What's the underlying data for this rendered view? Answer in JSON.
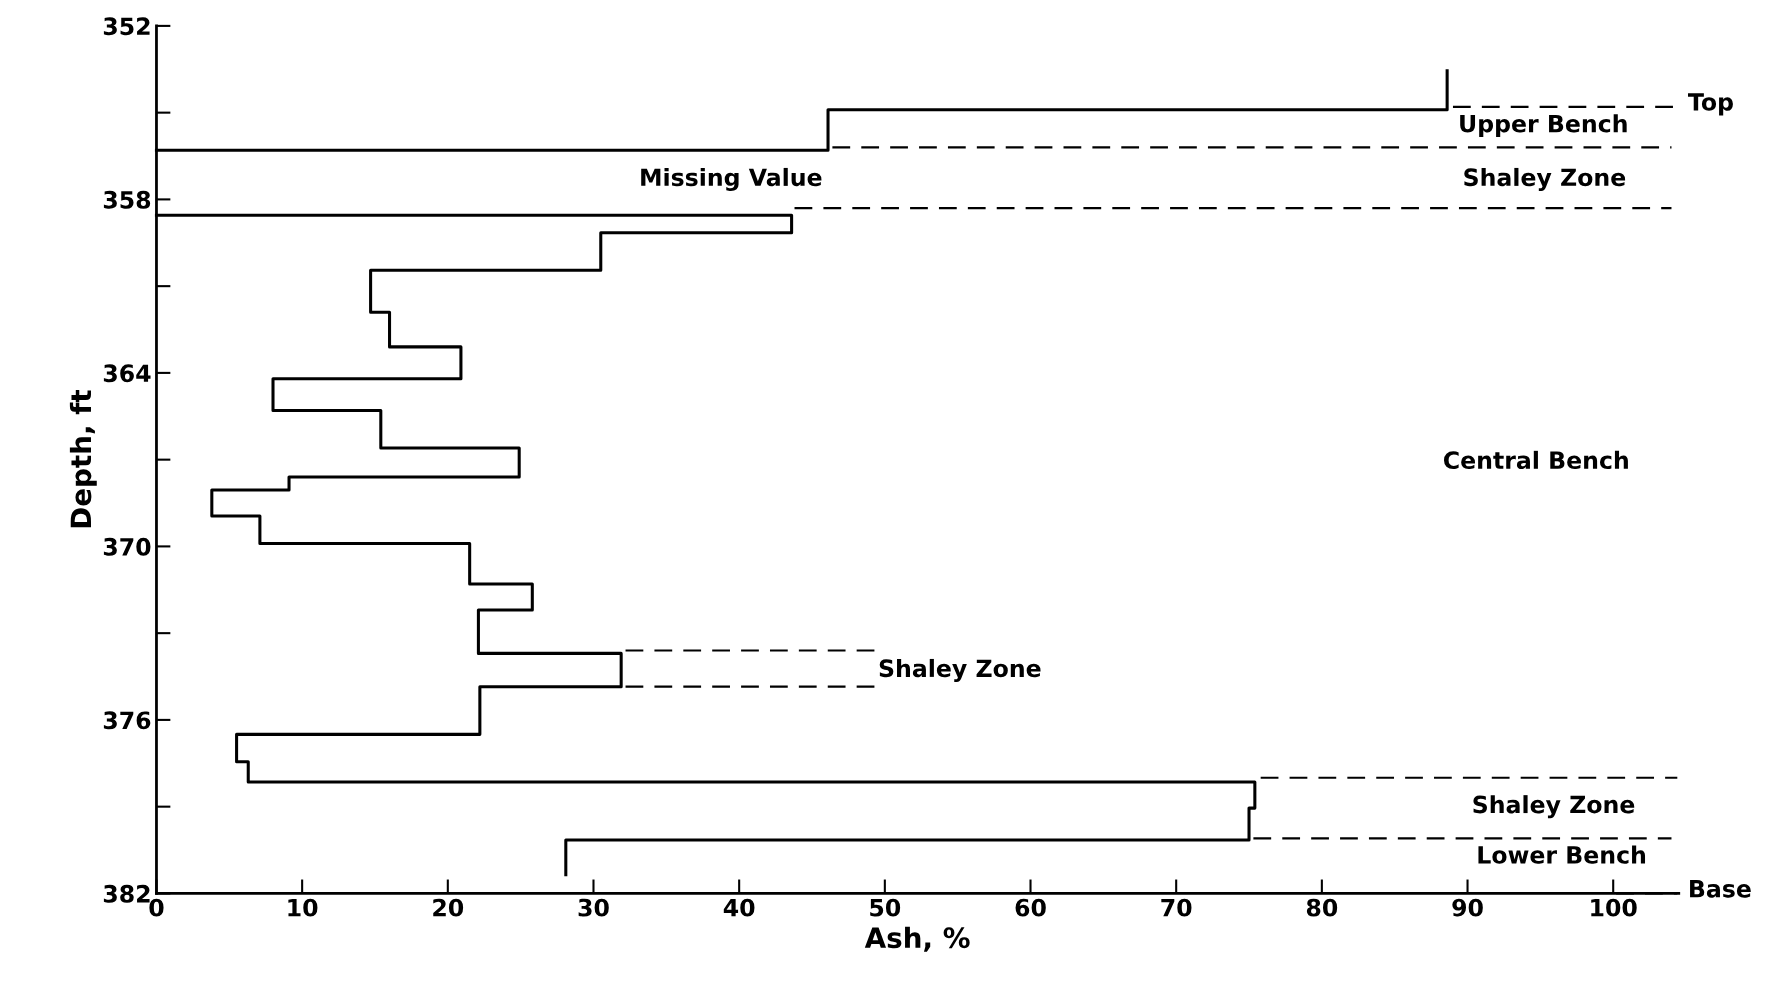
{
  "chart_data": {
    "type": "line",
    "xlabel": "Ash, %",
    "ylabel": "Depth, ft",
    "xlim": [
      0,
      104.5
    ],
    "xticks": [
      0,
      10,
      20,
      30,
      40,
      50,
      60,
      70,
      80,
      90,
      100
    ],
    "ylim": [
      382,
      352
    ],
    "yticks": [
      352,
      {
        "value": 355,
        "label": null
      },
      358,
      {
        "value": 361,
        "label": null
      },
      364,
      {
        "value": 367,
        "label": null
      },
      370,
      {
        "value": 373,
        "label": null
      },
      376,
      {
        "value": 379,
        "label": null
      },
      382
    ],
    "grid": false,
    "legend": false,
    "marker": "none",
    "series": [
      {
        "color": "#000000",
        "line_style": "solid",
        "x": [
          88.6,
          88.6,
          46.1,
          46.1,
          0
        ],
        "values": [
          353.55,
          354.9,
          354.9,
          356.3,
          356.3
        ]
      },
      {
        "color": "#000000",
        "line_style": "solid",
        "x": [
          0,
          43.6,
          43.6,
          30.5,
          30.5,
          14.7,
          14.7,
          16.0,
          16.0,
          20.9,
          20.9,
          8.0,
          8.0,
          15.4,
          15.4,
          24.9,
          24.9,
          9.1,
          9.1,
          3.8,
          3.8,
          7.1,
          7.1,
          21.5,
          21.5,
          25.8,
          25.8,
          22.1,
          22.1,
          31.9,
          31.9,
          22.2,
          22.2,
          5.5,
          5.5,
          6.3,
          6.3,
          75.4,
          75.4,
          75.0,
          75.0,
          28.1,
          28.1
        ],
        "values": [
          358.55,
          358.55,
          359.15,
          359.15,
          360.45,
          360.45,
          361.9,
          361.9,
          363.1,
          363.1,
          364.2,
          364.2,
          365.3,
          365.3,
          366.6,
          366.6,
          367.6,
          367.6,
          368.05,
          368.05,
          368.95,
          368.95,
          369.9,
          369.9,
          371.3,
          371.3,
          372.2,
          372.2,
          373.7,
          373.7,
          374.85,
          374.85,
          376.5,
          376.5,
          377.45,
          377.45,
          378.15,
          378.15,
          379.05,
          379.05,
          380.15,
          380.15,
          381.35
        ]
      },
      {
        "color": "#000000",
        "line_style": "dashed",
        "x": [
          89,
          104.5
        ],
        "values": [
          354.8,
          354.8
        ]
      },
      {
        "color": "#000000",
        "line_style": "dashed",
        "x": [
          46.4,
          104
        ],
        "values": [
          356.2,
          356.2
        ]
      },
      {
        "color": "#000000",
        "line_style": "dashed",
        "x": [
          43.8,
          104
        ],
        "values": [
          358.3,
          358.3
        ]
      },
      {
        "color": "#000000",
        "line_style": "dashed",
        "x": [
          32.2,
          49.4
        ],
        "values": [
          373.6,
          373.6
        ]
      },
      {
        "color": "#000000",
        "line_style": "dashed",
        "x": [
          32.2,
          49.4
        ],
        "values": [
          374.85,
          374.85
        ]
      },
      {
        "color": "#000000",
        "line_style": "dashed",
        "x": [
          75.8,
          104.4
        ],
        "values": [
          378.0,
          378.0
        ]
      },
      {
        "color": "#000000",
        "line_style": "dashed",
        "x": [
          75.3,
          104
        ],
        "values": [
          380.1,
          380.1
        ]
      },
      {
        "color": "#000000",
        "line_style": "dashed",
        "x": [
          100.2,
          104.4
        ],
        "values": [
          382,
          382
        ]
      }
    ],
    "annotations": [
      "Top",
      "Upper Bench",
      "Missing Value",
      "Shaley Zone",
      "Central Bench",
      "Shaley Zone",
      "Shaley Zone",
      "Lower Bench",
      "Base"
    ]
  }
}
